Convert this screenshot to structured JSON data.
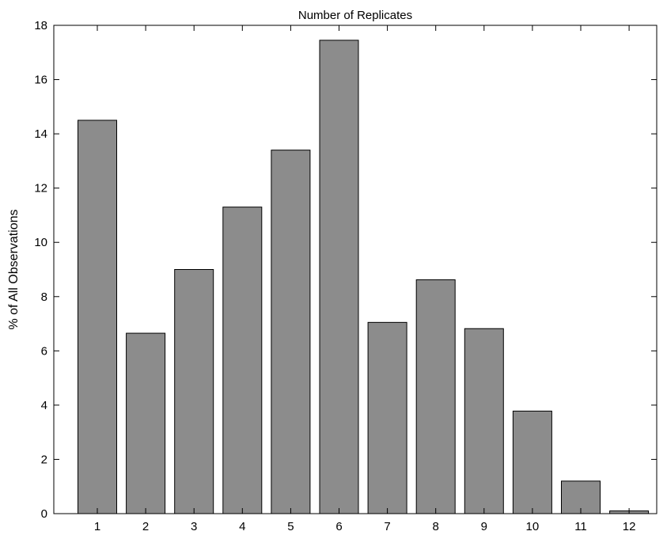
{
  "chart_data": {
    "type": "bar",
    "title": "Number of Replicates",
    "xlabel": "",
    "ylabel": "% of All Observations",
    "categories": [
      "1",
      "2",
      "3",
      "4",
      "5",
      "6",
      "7",
      "8",
      "9",
      "10",
      "11",
      "12"
    ],
    "values": [
      14.5,
      6.65,
      9.0,
      11.3,
      13.4,
      17.45,
      7.05,
      8.62,
      6.82,
      3.78,
      1.2,
      0.1
    ],
    "ylim": [
      0,
      18
    ],
    "yticks": [
      0,
      2,
      4,
      6,
      8,
      10,
      12,
      14,
      16,
      18
    ],
    "grid": false,
    "bar_color": "#8c8c8c"
  }
}
